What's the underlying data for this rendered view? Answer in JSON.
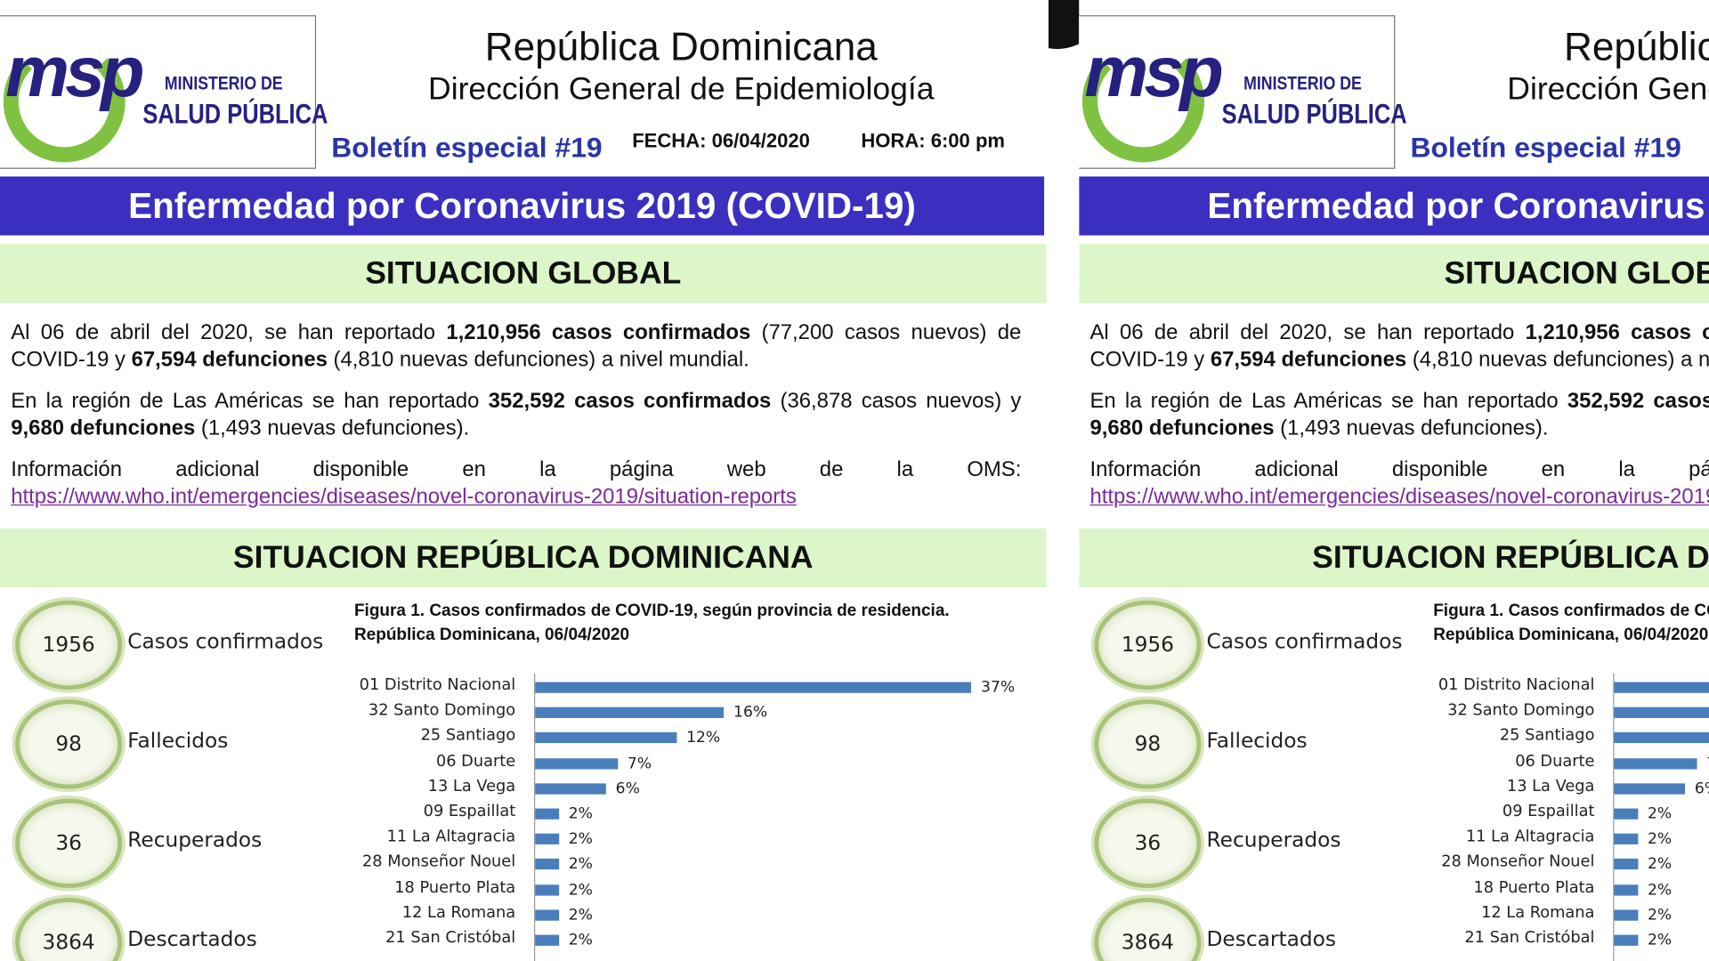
{
  "header": {
    "logo": {
      "mark": "msp",
      "line1": "MINISTERIO DE",
      "line2": "SALUD PÚBLICA"
    },
    "title": "República Dominicana",
    "subtitle": "Dirección General de Epidemiología",
    "bulletin": "Boletín especial #19",
    "date": "FECHA: 06/04/2020",
    "time": "HORA: 6:00 pm"
  },
  "banner": "Enfermedad por Coronavirus 2019 (COVID-19)",
  "global": {
    "heading": "SITUACION GLOBAL",
    "paragraphs": [
      [
        {
          "text": "Al 06 de abril del 2020, se han reportado ",
          "bold": false
        },
        {
          "text": "1,210,956 casos confirmados",
          "bold": true
        },
        {
          "text": " (77,200 casos nuevos) de COVID-19 y ",
          "bold": false
        },
        {
          "text": "67,594 defunciones",
          "bold": true
        },
        {
          "text": " (4,810 nuevas defunciones) a nivel mundial.",
          "bold": false
        }
      ],
      [
        {
          "text": "En la región de Las Américas se han reportado ",
          "bold": false
        },
        {
          "text": "352,592 casos confirmados",
          "bold": true
        },
        {
          "text": " (36,878 casos nuevos) y ",
          "bold": false
        },
        {
          "text": "9,680 defunciones",
          "bold": true
        },
        {
          "text": " (1,493 nuevas defunciones).",
          "bold": false
        }
      ],
      [
        {
          "text": "Información adicional disponible en la página web de la OMS: ",
          "bold": false
        },
        {
          "text": "https://www.who.int/emergencies/diseases/novel-coronavirus-2019/situation-reports",
          "link": true
        }
      ]
    ]
  },
  "dominicana": {
    "heading": "SITUACION REPÚBLICA DOMINICANA",
    "stats": [
      {
        "value": 1956,
        "label": "Casos confirmados"
      },
      {
        "value": 98,
        "label": "Fallecidos"
      },
      {
        "value": 36,
        "label": "Recuperados"
      },
      {
        "value": 3864,
        "label": "Descartados"
      }
    ],
    "figure": {
      "type": "bar",
      "title": "Figura 1. Casos confirmados de COVID-19, según provincia de residencia. República Dominicana, 06/04/2020",
      "categories": [
        "01 Distrito Nacional",
        "32 Santo Domingo",
        "25 Santiago",
        "06 Duarte",
        "13 La Vega",
        "09 Espaillat",
        "11 La Altagracia",
        "28 Monseñor Nouel",
        "18 Puerto Plata",
        "12 La Romana",
        "21 San Cristóbal"
      ],
      "values": [
        37,
        16,
        12,
        7,
        6,
        2,
        2,
        2,
        2,
        2,
        2
      ],
      "value_labels": [
        "37%",
        "16%",
        "12%",
        "7%",
        "6%",
        "2%",
        "2%",
        "2%",
        "2%",
        "2%",
        "2%"
      ],
      "color": "#4a7ebb"
    }
  }
}
